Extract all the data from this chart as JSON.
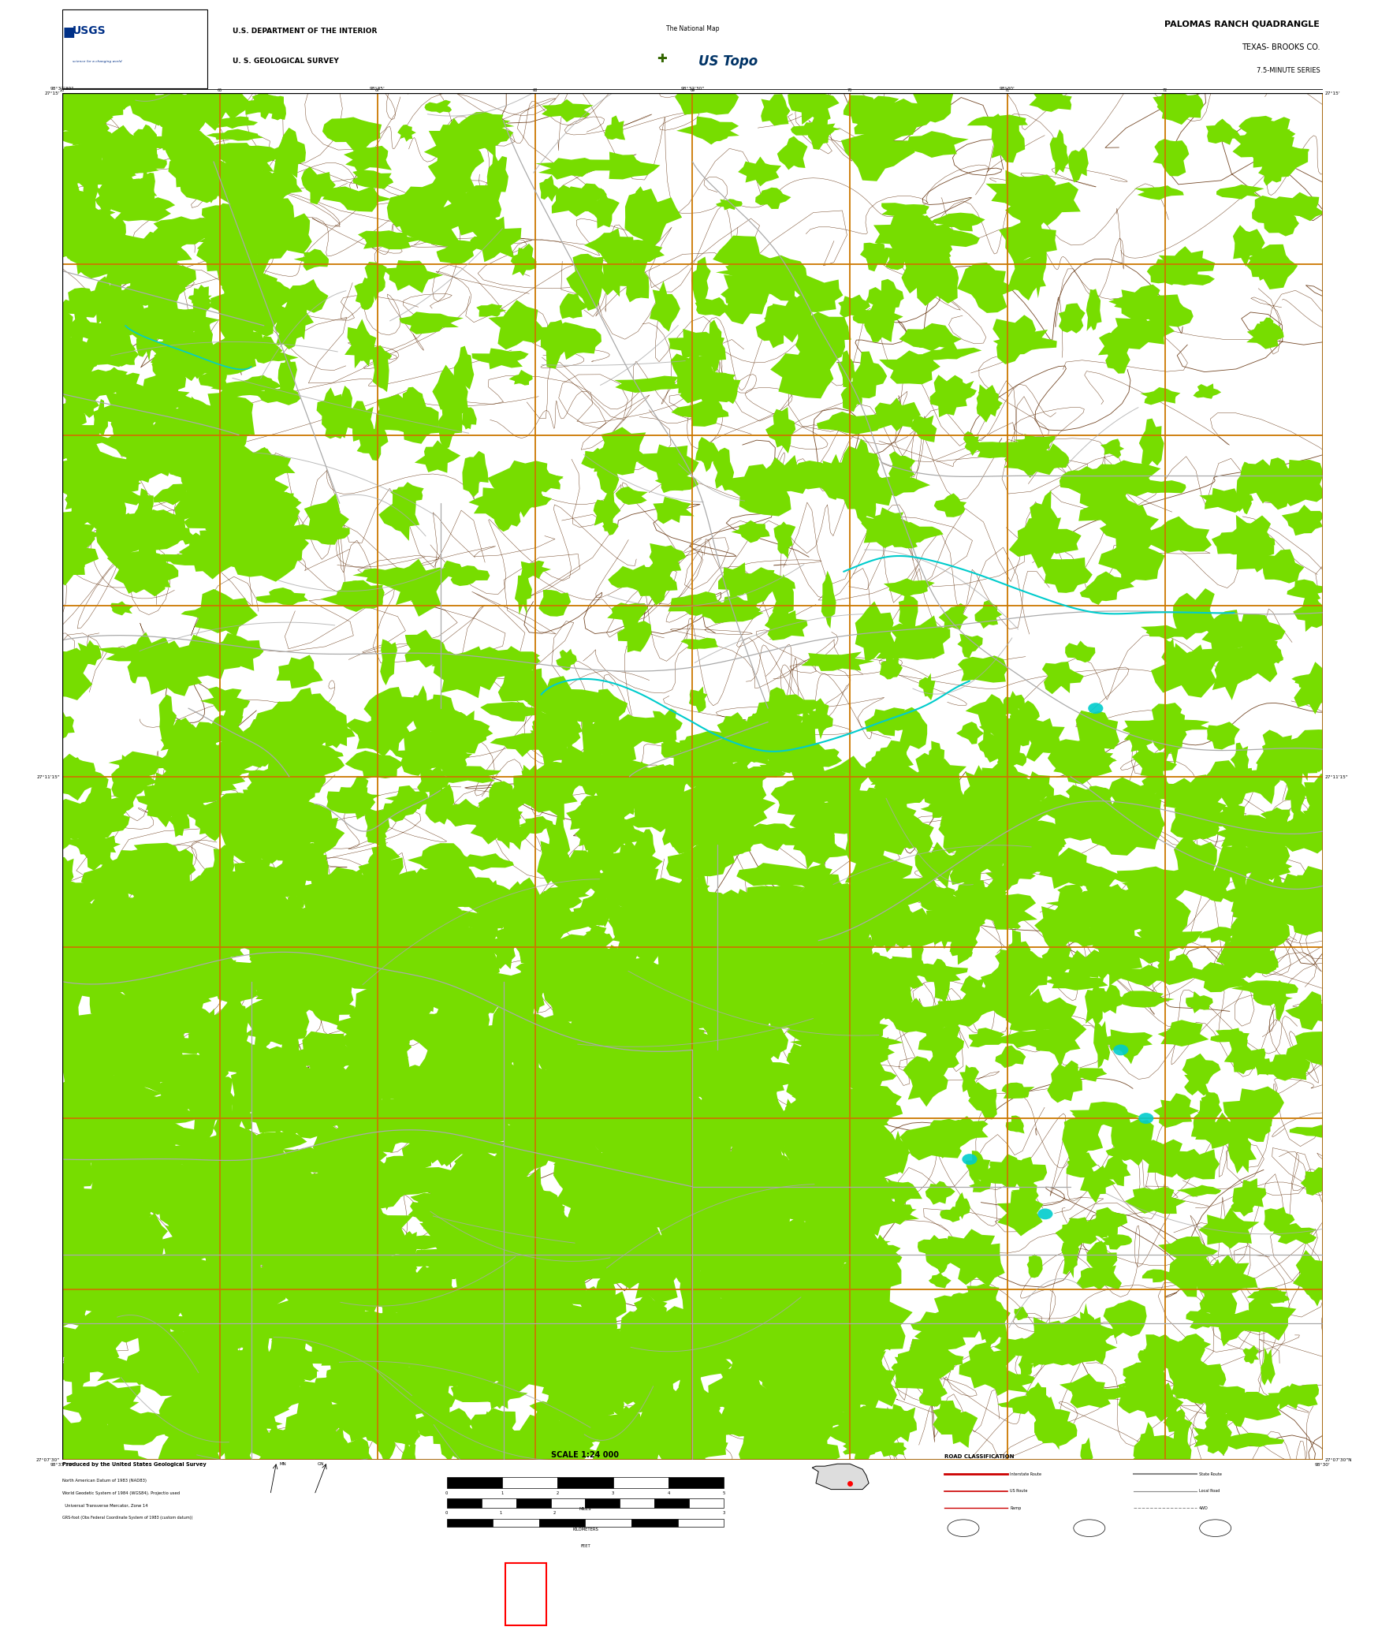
{
  "fig_width": 17.28,
  "fig_height": 20.88,
  "bg_color": "#000000",
  "white_bg": "#ffffff",
  "orange_grid": "#CC7700",
  "contour_color": "#5C2800",
  "veg_color": "#77DD00",
  "water_color": "#00CCCC",
  "gray_road": "#AAAAAA",
  "white_road": "#DDDDDD",
  "map_title1": "PALOMAS RANCH QUADRANGLE",
  "map_title2": "TEXAS- BROOKS CO.",
  "map_title3": "7.5-MINUTE SERIES",
  "dept_line1": "U.S. DEPARTMENT OF THE INTERIOR",
  "dept_line2": "U. S. GEOLOGICAL SURVEY",
  "natmap_line1": "The National Map",
  "natmap_line2": "US Topo",
  "footer_produced": "Produced by the United States Geological Survey",
  "footer_datum1": "North American Datum of 1983 (NAD83)",
  "footer_datum2": "World Geodetic System of 1984 (WGS84). Projectio used",
  "footer_datum3": "  Universal Transverse Mercator, Zone 14",
  "footer_datum4": "GRS-foot (Obs Federal Coordinate System of 1983 (custom datum))",
  "scale_text": "SCALE 1:24 000",
  "road_class_title": "ROAD CLASSIFICATION",
  "road_labels": [
    "Interstate Route",
    "State Route",
    "US Route",
    "Local Road",
    "Ramp",
    "4WD"
  ],
  "road_shield_labels": [
    "Interstate Route",
    "US Route",
    "State Route"
  ]
}
